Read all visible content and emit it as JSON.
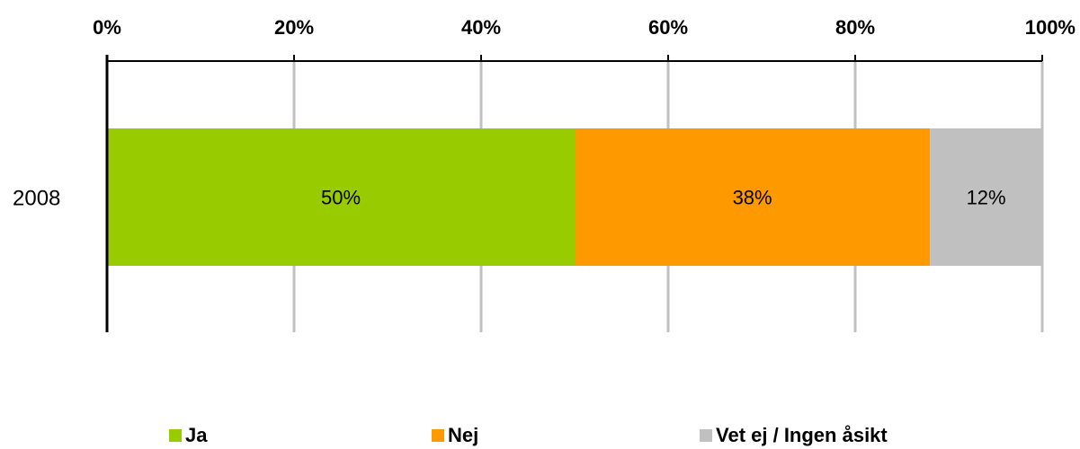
{
  "chart_data": {
    "type": "bar",
    "orientation": "horizontal",
    "stacked": true,
    "percent": true,
    "categories": [
      "2008"
    ],
    "series": [
      {
        "name": "Ja",
        "values": [
          50
        ],
        "color": "#99cc00"
      },
      {
        "name": "Nej",
        "values": [
          38
        ],
        "color": "#ff9900"
      },
      {
        "name": "Vet ej / Ingen åsikt",
        "values": [
          12
        ],
        "color": "#c0c0c0"
      }
    ],
    "data_labels": [
      [
        "50%"
      ],
      [
        "38%"
      ],
      [
        "12%"
      ]
    ],
    "x_ticks": [
      "0%",
      "20%",
      "40%",
      "60%",
      "80%",
      "100%"
    ],
    "xlim": [
      0,
      100
    ],
    "x_axis_position": "top",
    "grid": true,
    "legend_position": "bottom"
  }
}
